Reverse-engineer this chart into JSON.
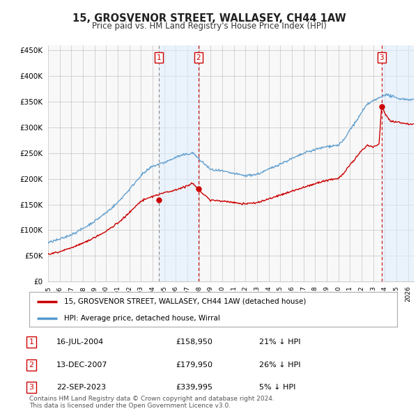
{
  "title": "15, GROSVENOR STREET, WALLASEY, CH44 1AW",
  "subtitle": "Price paid vs. HM Land Registry's House Price Index (HPI)",
  "ylim": [
    0,
    460000
  ],
  "yticks": [
    0,
    50000,
    100000,
    150000,
    200000,
    250000,
    300000,
    350000,
    400000,
    450000
  ],
  "ytick_labels": [
    "£0",
    "£50K",
    "£100K",
    "£150K",
    "£200K",
    "£250K",
    "£300K",
    "£350K",
    "£400K",
    "£450K"
  ],
  "background_color": "#ffffff",
  "plot_bg_color": "#f5f5f5",
  "grid_color": "#cccccc",
  "hpi_color": "#5599cc",
  "price_color": "#cc0000",
  "sale1_date": 2004.54,
  "sale1_price": 158950,
  "sale2_date": 2007.95,
  "sale2_price": 179950,
  "sale3_date": 2023.73,
  "sale3_price": 339995,
  "legend_label_price": "15, GROSVENOR STREET, WALLASEY, CH44 1AW (detached house)",
  "legend_label_hpi": "HPI: Average price, detached house, Wirral",
  "table_rows": [
    {
      "num": "1",
      "date": "16-JUL-2004",
      "price": "£158,950",
      "note": "21% ↓ HPI"
    },
    {
      "num": "2",
      "date": "13-DEC-2007",
      "price": "£179,950",
      "note": "26% ↓ HPI"
    },
    {
      "num": "3",
      "date": "22-SEP-2023",
      "price": "£339,995",
      "note": "5% ↓ HPI"
    }
  ],
  "footnote": "Contains HM Land Registry data © Crown copyright and database right 2024.\nThis data is licensed under the Open Government Licence v3.0.",
  "xmin": 1995,
  "xmax": 2026.5
}
